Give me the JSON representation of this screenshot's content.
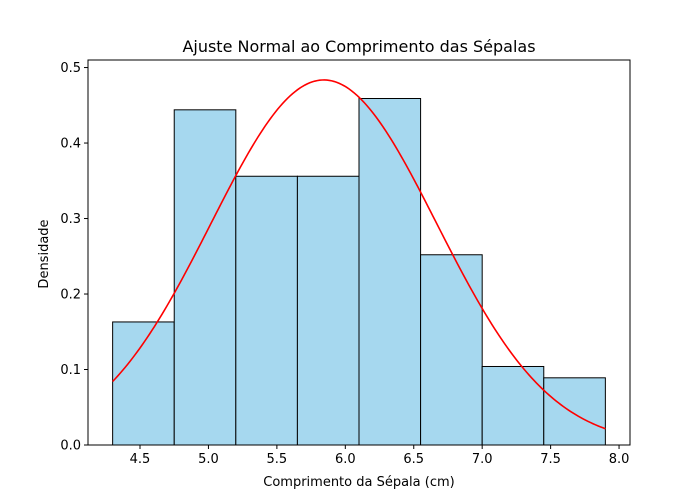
{
  "chart_data": {
    "type": "bar",
    "title": "Ajuste Normal ao Comprimento das Sépalas",
    "xlabel": "Comprimento da Sépala (cm)",
    "ylabel": "Densidade",
    "xlim": [
      4.12,
      8.08
    ],
    "ylim": [
      0,
      0.51
    ],
    "xticks": [
      "4.5",
      "5.0",
      "5.5",
      "6.0",
      "6.5",
      "7.0",
      "7.5",
      "8.0"
    ],
    "yticks": [
      "0.0",
      "0.1",
      "0.2",
      "0.3",
      "0.4",
      "0.5"
    ],
    "bins": [
      {
        "x0": 4.3,
        "x1": 4.75,
        "value": 0.163
      },
      {
        "x0": 4.75,
        "x1": 5.2,
        "value": 0.444
      },
      {
        "x0": 5.2,
        "x1": 5.65,
        "value": 0.356
      },
      {
        "x0": 5.65,
        "x1": 6.1,
        "value": 0.356
      },
      {
        "x0": 6.1,
        "x1": 6.55,
        "value": 0.459
      },
      {
        "x0": 6.55,
        "x1": 7.0,
        "value": 0.252
      },
      {
        "x0": 7.0,
        "x1": 7.45,
        "value": 0.104
      },
      {
        "x0": 7.45,
        "x1": 7.9,
        "value": 0.089
      }
    ],
    "normal_curve": {
      "mean": 5.843,
      "std": 0.825,
      "x_range": [
        4.3,
        7.9
      ]
    },
    "colors": {
      "bar_fill": "#a6d8ef",
      "bar_edge": "#000000",
      "curve": "#ff0000"
    },
    "grid": false,
    "legend": "none"
  }
}
